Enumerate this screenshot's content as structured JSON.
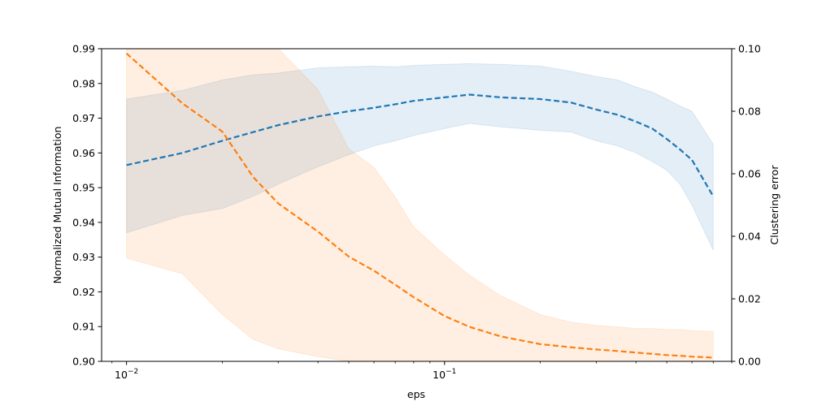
{
  "chart_data": {
    "type": "line",
    "xlabel": "eps",
    "x_scale": "log",
    "xlim": [
      0.00835,
      0.8
    ],
    "x_ticks": [
      {
        "value": 0.01,
        "base": "10",
        "exp": "−2"
      },
      {
        "value": 0.1,
        "base": "10",
        "exp": "−1"
      }
    ],
    "left_axis": {
      "label": "Normalized Mutual Information",
      "ylim": [
        0.9,
        0.99
      ],
      "ticks": [
        "0.90",
        "0.91",
        "0.92",
        "0.93",
        "0.94",
        "0.95",
        "0.96",
        "0.97",
        "0.98",
        "0.99"
      ]
    },
    "right_axis": {
      "label": "Clustering error",
      "ylim": [
        0.0,
        0.1
      ],
      "ticks": [
        "0.00",
        "0.02",
        "0.04",
        "0.06",
        "0.08",
        "0.10"
      ]
    },
    "x": [
      0.01,
      0.015,
      0.02,
      0.025,
      0.03,
      0.04,
      0.05,
      0.06,
      0.07,
      0.08,
      0.1,
      0.12,
      0.15,
      0.2,
      0.25,
      0.3,
      0.35,
      0.4,
      0.45,
      0.5,
      0.55,
      0.6,
      0.7
    ],
    "series": [
      {
        "axis": "left",
        "color": "#1f77b4",
        "band_color": "#1f77b4",
        "mean": [
          0.9565,
          0.96,
          0.9635,
          0.966,
          0.968,
          0.9705,
          0.972,
          0.973,
          0.974,
          0.975,
          0.976,
          0.9768,
          0.976,
          0.9755,
          0.9745,
          0.9725,
          0.971,
          0.969,
          0.967,
          0.964,
          0.961,
          0.958,
          0.9475
        ],
        "lower": [
          0.937,
          0.942,
          0.944,
          0.9475,
          0.951,
          0.956,
          0.9595,
          0.962,
          0.9635,
          0.965,
          0.967,
          0.9685,
          0.9675,
          0.9665,
          0.966,
          0.9635,
          0.962,
          0.96,
          0.9575,
          0.955,
          0.951,
          0.945,
          0.932
        ],
        "upper": [
          0.9755,
          0.978,
          0.981,
          0.9825,
          0.983,
          0.9845,
          0.9848,
          0.985,
          0.9848,
          0.9852,
          0.9855,
          0.9857,
          0.9855,
          0.985,
          0.9835,
          0.982,
          0.981,
          0.979,
          0.9775,
          0.9755,
          0.9735,
          0.972,
          0.9625
        ]
      },
      {
        "axis": "right",
        "color": "#ff7f0e",
        "band_color": "#ff7f0e",
        "mean": [
          0.0985,
          0.0825,
          0.0735,
          0.059,
          0.0505,
          0.0415,
          0.0335,
          0.029,
          0.0245,
          0.0205,
          0.0145,
          0.011,
          0.008,
          0.0055,
          0.0045,
          0.0038,
          0.0033,
          0.0028,
          0.0024,
          0.002,
          0.0018,
          0.0015,
          0.0012
        ],
        "lower": [
          0.033,
          0.028,
          0.015,
          0.007,
          0.004,
          0.0015,
          0.0,
          0.0,
          0.0,
          0.0,
          0.0,
          0.0,
          0.0,
          0.0,
          0.0,
          0.0,
          0.0,
          0.0,
          0.0,
          0.0,
          0.0,
          0.0,
          0.0
        ],
        "upper": [
          0.1,
          0.1,
          0.1,
          0.1,
          0.1,
          0.087,
          0.068,
          0.062,
          0.0525,
          0.043,
          0.034,
          0.0275,
          0.021,
          0.015,
          0.0125,
          0.0115,
          0.011,
          0.0105,
          0.0105,
          0.0102,
          0.0102,
          0.0098,
          0.0095
        ]
      }
    ]
  }
}
